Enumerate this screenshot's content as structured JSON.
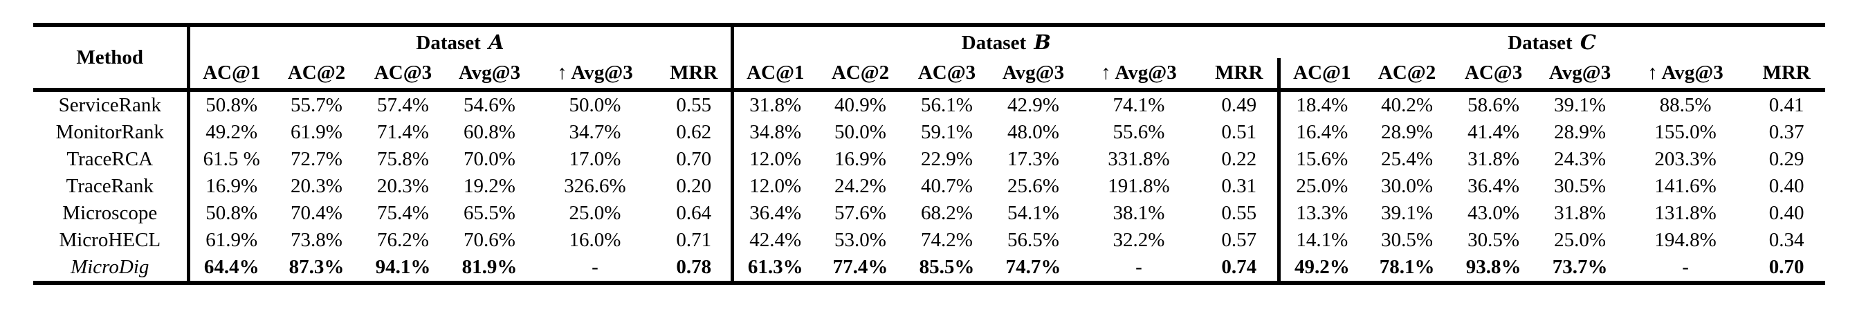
{
  "page": {
    "background": "#ffffff",
    "text_color": "#000000",
    "rule_color": "#000000"
  },
  "table": {
    "method_header": "Method",
    "datasets": [
      {
        "title": "Dataset",
        "letter": "A",
        "columns": [
          "AC@1",
          "AC@2",
          "AC@3",
          "Avg@3",
          "↑ Avg@3",
          "MRR"
        ]
      },
      {
        "title": "Dataset",
        "letter": "B",
        "columns": [
          "AC@1",
          "AC@2",
          "AC@3",
          "Avg@3",
          "↑ Avg@3",
          "MRR"
        ]
      },
      {
        "title": "Dataset",
        "letter": "C",
        "columns": [
          "AC@1",
          "AC@2",
          "AC@3",
          "Avg@3",
          "↑ Avg@3",
          "MRR"
        ]
      }
    ],
    "rows": [
      {
        "method": "ServiceRank",
        "italic": false,
        "bold": false,
        "values": [
          "50.8%",
          "55.7%",
          "57.4%",
          "54.6%",
          "50.0%",
          "0.55",
          "31.8%",
          "40.9%",
          "56.1%",
          "42.9%",
          "74.1%",
          "0.49",
          "18.4%",
          "40.2%",
          "58.6%",
          "39.1%",
          "88.5%",
          "0.41"
        ]
      },
      {
        "method": "MonitorRank",
        "italic": false,
        "bold": false,
        "values": [
          "49.2%",
          "61.9%",
          "71.4%",
          "60.8%",
          "34.7%",
          "0.62",
          "34.8%",
          "50.0%",
          "59.1%",
          "48.0%",
          "55.6%",
          "0.51",
          "16.4%",
          "28.9%",
          "41.4%",
          "28.9%",
          "155.0%",
          "0.37"
        ]
      },
      {
        "method": "TraceRCA",
        "italic": false,
        "bold": false,
        "values": [
          "61.5 %",
          "72.7%",
          "75.8%",
          "70.0%",
          "17.0%",
          "0.70",
          "12.0%",
          "16.9%",
          "22.9%",
          "17.3%",
          "331.8%",
          "0.22",
          "15.6%",
          "25.4%",
          "31.8%",
          "24.3%",
          "203.3%",
          "0.29"
        ]
      },
      {
        "method": "TraceRank",
        "italic": false,
        "bold": false,
        "values": [
          "16.9%",
          "20.3%",
          "20.3%",
          "19.2%",
          "326.6%",
          "0.20",
          "12.0%",
          "24.2%",
          "40.7%",
          "25.6%",
          "191.8%",
          "0.31",
          "25.0%",
          "30.0%",
          "36.4%",
          "30.5%",
          "141.6%",
          "0.40"
        ]
      },
      {
        "method": "Microscope",
        "italic": false,
        "bold": false,
        "values": [
          "50.8%",
          "70.4%",
          "75.4%",
          "65.5%",
          "25.0%",
          "0.64",
          "36.4%",
          "57.6%",
          "68.2%",
          "54.1%",
          "38.1%",
          "0.55",
          "13.3%",
          "39.1%",
          "43.0%",
          "31.8%",
          "131.8%",
          "0.40"
        ]
      },
      {
        "method": "MicroHECL",
        "italic": false,
        "bold": false,
        "values": [
          "61.9%",
          "73.8%",
          "76.2%",
          "70.6%",
          "16.0%",
          "0.71",
          "42.4%",
          "53.0%",
          "74.2%",
          "56.5%",
          "32.2%",
          "0.57",
          "14.1%",
          "30.5%",
          "30.5%",
          "25.0%",
          "194.8%",
          "0.34"
        ]
      },
      {
        "method": "MicroDig",
        "italic": true,
        "bold": true,
        "values": [
          "64.4%",
          "87.3%",
          "94.1%",
          "81.9%",
          "-",
          "0.78",
          "61.3%",
          "77.4%",
          "85.5%",
          "74.7%",
          "-",
          "0.74",
          "49.2%",
          "78.1%",
          "93.8%",
          "73.7%",
          "-",
          "0.70"
        ]
      }
    ]
  }
}
